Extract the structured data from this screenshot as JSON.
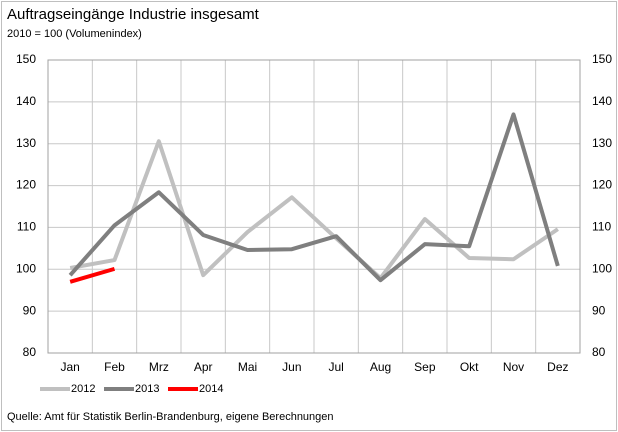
{
  "chart_data": {
    "type": "line",
    "title": "Auftragseingänge Industrie insgesamt",
    "subtitle": "2010 = 100 (Volumenindex)",
    "source": "Quelle: Amt für Statistik Berlin-Brandenburg, eigene Berechnungen",
    "categories": [
      "Jan",
      "Feb",
      "Mrz",
      "Apr",
      "Mai",
      "Jun",
      "Jul",
      "Aug",
      "Sep",
      "Okt",
      "Nov",
      "Dez"
    ],
    "series": [
      {
        "name": "2012",
        "color": "#c0c0c0",
        "values": [
          100.3,
          102.2,
          130.6,
          98.6,
          108.9,
          117.2,
          107.4,
          97.9,
          112,
          102.7,
          102.4,
          109.6
        ]
      },
      {
        "name": "2013",
        "color": "#7f7f7f",
        "values": [
          98.6,
          110.5,
          118.4,
          108.2,
          104.6,
          104.8,
          107.9,
          97.4,
          106,
          105.5,
          137,
          100.8
        ]
      },
      {
        "name": "2014",
        "color": "#ff0000",
        "values": [
          97,
          100.1,
          null,
          null,
          null,
          null,
          null,
          null,
          null,
          null,
          null,
          null
        ]
      }
    ],
    "ylim": [
      80,
      150
    ],
    "yticks": [
      80,
      90,
      100,
      110,
      120,
      130,
      140,
      150
    ],
    "y2lim": [
      80,
      150
    ],
    "y2ticks": [
      80,
      90,
      100,
      110,
      120,
      130,
      140,
      150
    ],
    "grid": true,
    "legend": "bottom"
  }
}
